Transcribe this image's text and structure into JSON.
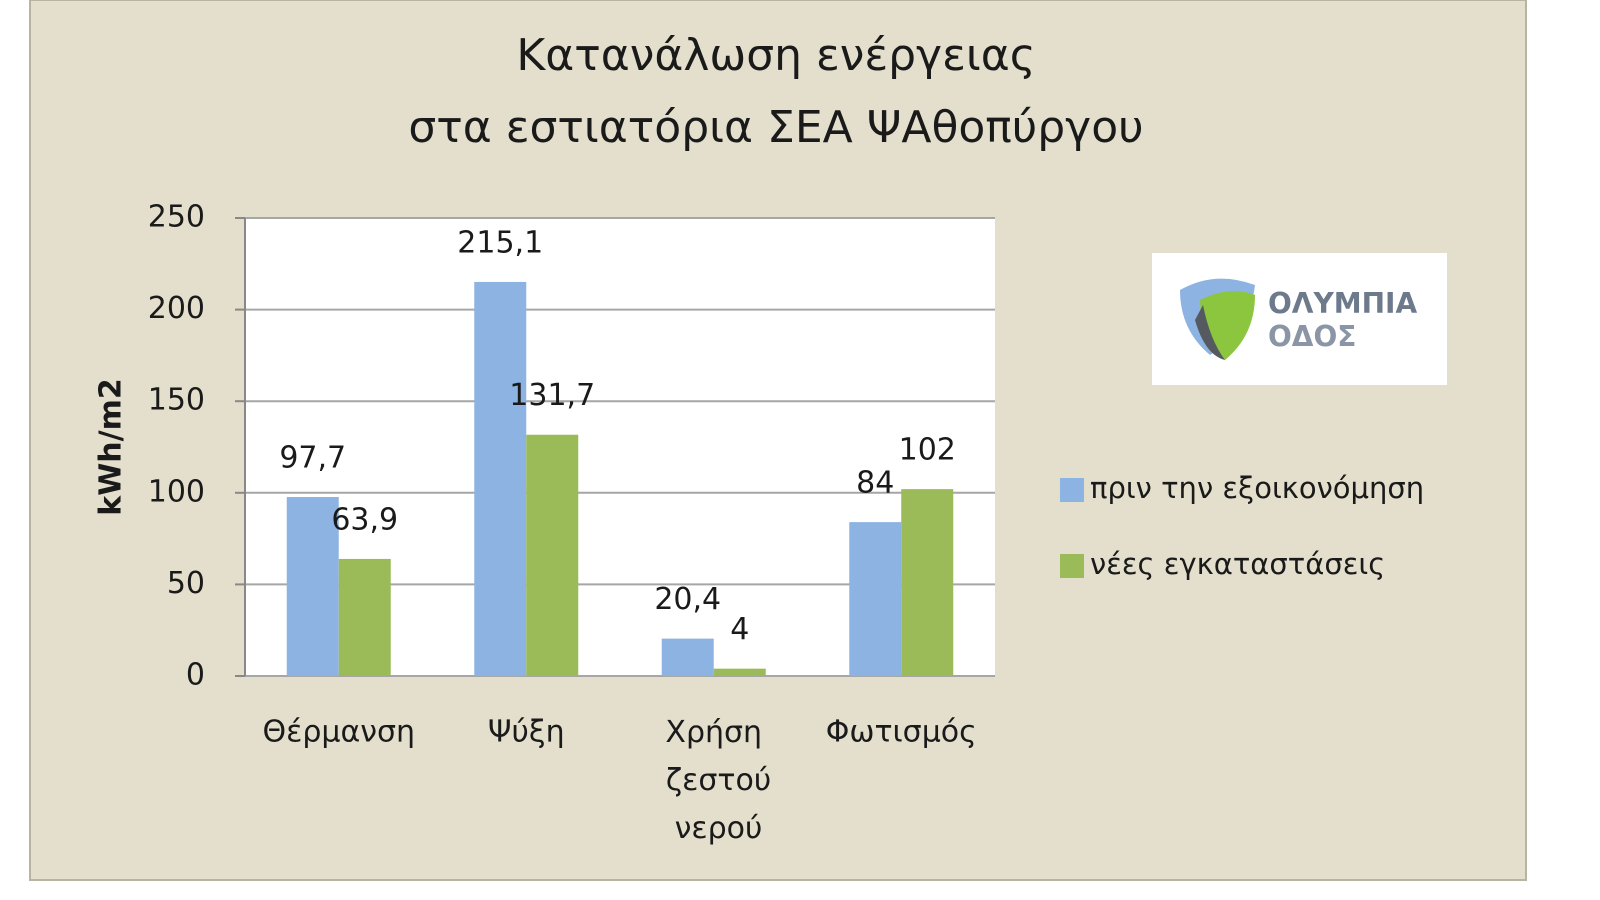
{
  "chart_data": {
    "type": "bar",
    "title": [
      "Κατανάλωση ενέργειας",
      "στα εστιατόρια ΣΕΑ ΨΑθοπύργου"
    ],
    "y_label": "kWh/m2",
    "categories": [
      "Θέρμανση",
      "Ψύξη",
      "Χρήση ζεστού νερού",
      "Φωτισμός"
    ],
    "series": [
      {
        "name": "πριν την εξοικονόμηση",
        "color": "#8db3e2",
        "values": [
          97.7,
          215.1,
          20.4,
          84
        ],
        "value_labels": [
          "97,7",
          "215,1",
          "20,4",
          "84"
        ]
      },
      {
        "name": "νέες εγκαταστάσεις",
        "color": "#9bbb59",
        "values": [
          63.9,
          131.7,
          4,
          102
        ],
        "value_labels": [
          "63,9",
          "131,7",
          "4",
          "102"
        ]
      }
    ],
    "ylim": [
      0,
      250
    ],
    "yticks": [
      0,
      50,
      100,
      150,
      200,
      250
    ],
    "grid": true,
    "legend": "right"
  },
  "logo_text": [
    "ΟΛΥΜΠΙΑ",
    "ΟΔΟΣ"
  ]
}
